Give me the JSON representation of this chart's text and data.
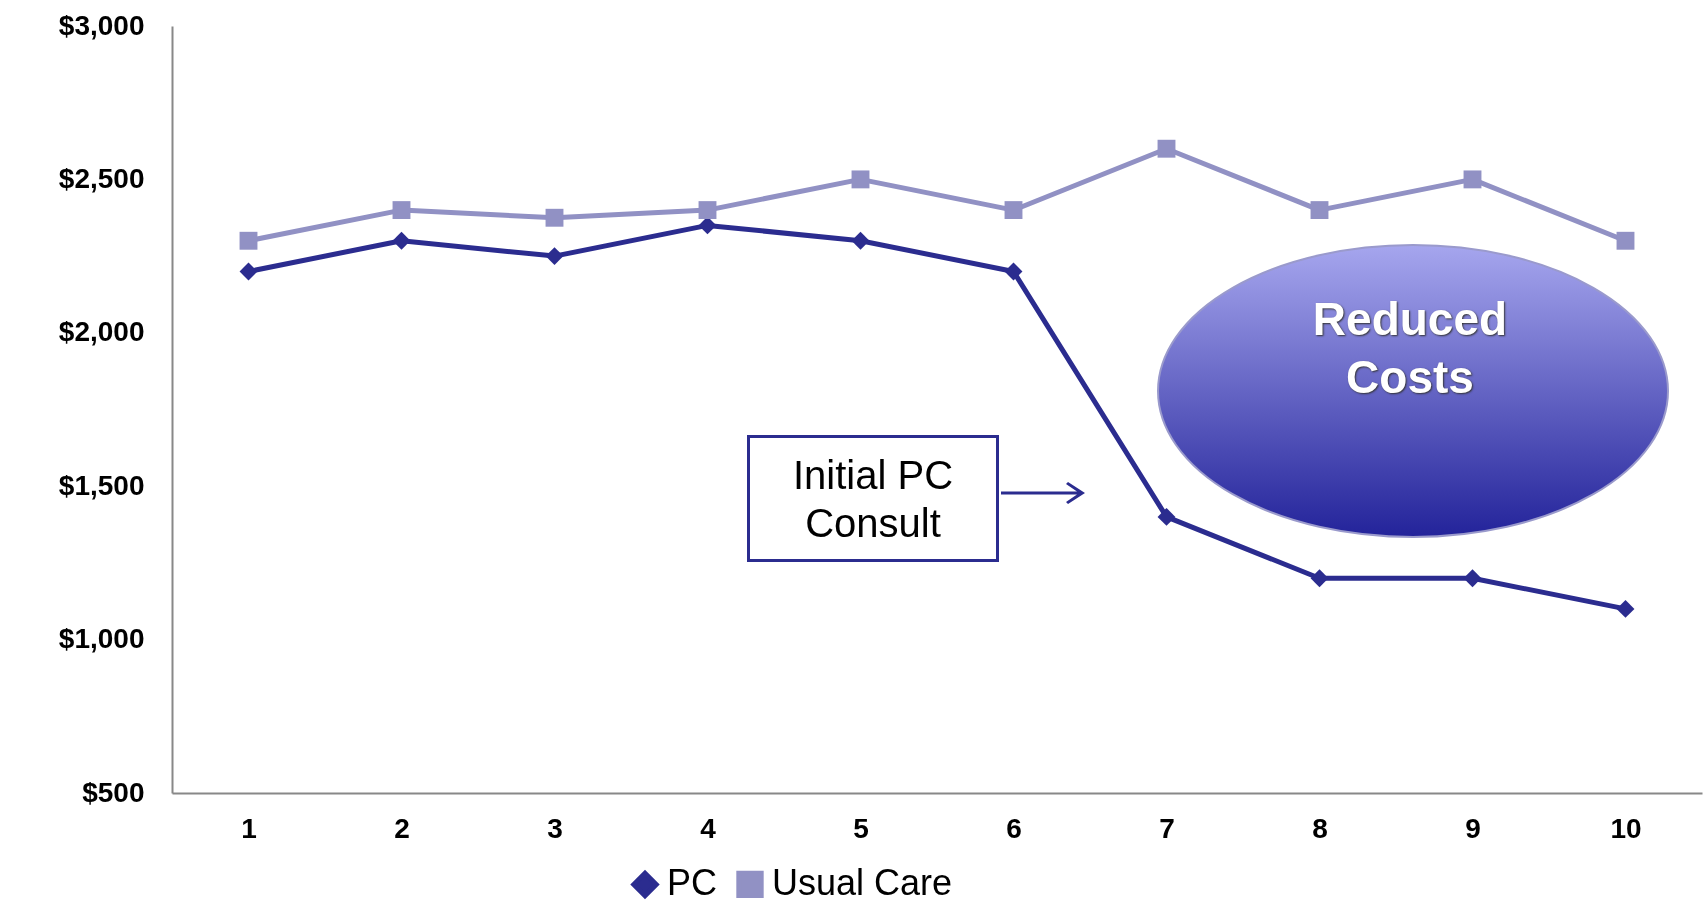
{
  "chart_data": {
    "type": "line",
    "categories": [
      "1",
      "2",
      "3",
      "4",
      "5",
      "6",
      "7",
      "8",
      "9",
      "10"
    ],
    "series": [
      {
        "name": "PC",
        "color": "#2b2c8f",
        "marker": "diamond",
        "values": [
          2200,
          2300,
          2250,
          2350,
          2300,
          2200,
          1400,
          1200,
          1200,
          1100
        ]
      },
      {
        "name": "Usual Care",
        "color": "#9191c4",
        "marker": "square",
        "values": [
          2300,
          2400,
          2375,
          2400,
          2500,
          2400,
          2600,
          2400,
          2500,
          2300
        ]
      }
    ],
    "ylim": [
      500,
      3000
    ],
    "yticks": [
      {
        "value": 500,
        "label": "$500"
      },
      {
        "value": 1000,
        "label": "$1,000"
      },
      {
        "value": 1500,
        "label": "$1,500"
      },
      {
        "value": 2000,
        "label": "$2,000"
      },
      {
        "value": 2500,
        "label": "$2,500"
      },
      {
        "value": 3000,
        "label": "$3,000"
      }
    ],
    "grid": false,
    "legend": "bottom",
    "line_style": "solid",
    "annotations": [
      "Initial PC Consult",
      "Reduced Costs"
    ]
  }
}
